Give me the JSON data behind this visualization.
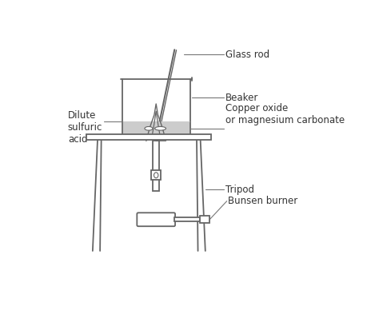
{
  "bg_color": "#ffffff",
  "line_color": "#666666",
  "labels": {
    "glass_rod": "Glass rod",
    "beaker": "Beaker",
    "copper_oxide": "Copper oxide\nor magnesium carbonate",
    "dilute": "Dilute\nsulfuric\nacid",
    "tripod": "Tripod",
    "bunsen": "Bunsen burner"
  },
  "figsize": [
    4.74,
    4.03
  ],
  "dpi": 100
}
